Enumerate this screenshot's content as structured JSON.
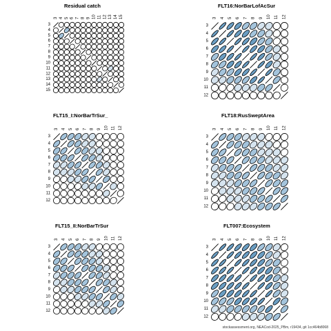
{
  "footer": "stockassessment.org, NEACod-2025_PBm, r19434, git 1cc464b8068",
  "colors": {
    "stroke": "#000000",
    "fill_light": "#d6e4ef",
    "fill_mid": "#a4c4dc",
    "fill_dark": "#6b9ec3"
  },
  "chart_data": [
    {
      "type": "correlation-ellipse-matrix",
      "title": "Residual catch",
      "ages": [
        3,
        4,
        5,
        6,
        7,
        8,
        9,
        10,
        11,
        12,
        13,
        14,
        15
      ],
      "correlation": [
        [
          1.0,
          0.05,
          0.06,
          0.04,
          0.03,
          0.02,
          0.02,
          0.01,
          0.01,
          0.01,
          0.0,
          0.0,
          0.0
        ],
        [
          0.05,
          1.0,
          0.4,
          0.1,
          0.05,
          0.03,
          0.02,
          0.01,
          0.01,
          0.0,
          0.0,
          0.0,
          0.0
        ],
        [
          0.06,
          0.4,
          1.0,
          0.05,
          0.04,
          0.03,
          0.02,
          0.01,
          0.01,
          0.0,
          0.0,
          0.0,
          0.0
        ],
        [
          0.04,
          0.1,
          0.05,
          1.0,
          0.05,
          0.03,
          0.02,
          0.01,
          0.01,
          0.0,
          0.0,
          0.0,
          0.0
        ],
        [
          0.03,
          0.05,
          0.04,
          0.05,
          1.0,
          0.05,
          0.02,
          0.01,
          0.01,
          0.0,
          0.0,
          0.0,
          0.0
        ],
        [
          0.02,
          0.03,
          0.03,
          0.03,
          0.05,
          1.0,
          0.05,
          0.02,
          0.01,
          0.0,
          0.0,
          0.0,
          0.0
        ],
        [
          0.02,
          0.02,
          0.02,
          0.02,
          0.02,
          0.05,
          1.0,
          0.05,
          0.02,
          0.01,
          0.0,
          0.0,
          0.0
        ],
        [
          0.01,
          0.01,
          0.01,
          0.01,
          0.01,
          0.02,
          0.05,
          1.0,
          0.05,
          0.02,
          0.01,
          0.0,
          0.0
        ],
        [
          0.01,
          0.01,
          0.01,
          0.01,
          0.01,
          0.01,
          0.02,
          0.05,
          1.0,
          0.05,
          0.35,
          0.02,
          0.01
        ],
        [
          0.01,
          0.0,
          0.0,
          0.0,
          0.0,
          0.0,
          0.01,
          0.02,
          0.05,
          1.0,
          0.05,
          0.02,
          0.01
        ],
        [
          0.0,
          0.0,
          0.0,
          0.0,
          0.0,
          0.0,
          0.0,
          0.01,
          0.35,
          0.05,
          1.0,
          0.05,
          0.02
        ],
        [
          0.0,
          0.0,
          0.0,
          0.0,
          0.0,
          0.0,
          0.0,
          0.0,
          0.02,
          0.02,
          0.05,
          1.0,
          0.05
        ],
        [
          0.0,
          0.0,
          0.0,
          0.0,
          0.0,
          0.0,
          0.0,
          0.0,
          0.01,
          0.01,
          0.02,
          0.05,
          1.0
        ]
      ]
    },
    {
      "type": "correlation-ellipse-matrix",
      "title": "FLT16:NorBarLofAcSur",
      "ages": [
        3,
        4,
        5,
        6,
        7,
        8,
        9,
        10,
        11,
        12
      ],
      "correlation": [
        [
          1.0,
          0.85,
          0.75,
          0.65,
          0.55,
          0.45,
          0.35,
          0.2,
          0.05,
          0.0
        ],
        [
          0.85,
          1.0,
          0.85,
          0.75,
          0.65,
          0.55,
          0.45,
          0.3,
          0.1,
          0.0
        ],
        [
          0.75,
          0.85,
          1.0,
          0.85,
          0.75,
          0.65,
          0.55,
          0.4,
          0.15,
          0.0
        ],
        [
          0.65,
          0.75,
          0.85,
          1.0,
          0.85,
          0.75,
          0.65,
          0.5,
          0.2,
          0.0
        ],
        [
          0.55,
          0.65,
          0.75,
          0.85,
          1.0,
          0.85,
          0.75,
          0.6,
          0.25,
          0.0
        ],
        [
          0.45,
          0.55,
          0.65,
          0.75,
          0.85,
          1.0,
          0.85,
          0.7,
          0.3,
          0.0
        ],
        [
          0.35,
          0.45,
          0.55,
          0.65,
          0.75,
          0.85,
          1.0,
          0.85,
          0.4,
          0.0
        ],
        [
          0.2,
          0.3,
          0.4,
          0.5,
          0.6,
          0.7,
          0.85,
          1.0,
          0.55,
          0.0
        ],
        [
          0.05,
          0.1,
          0.15,
          0.2,
          0.25,
          0.3,
          0.4,
          0.55,
          1.0,
          0.1
        ],
        [
          0.0,
          0.0,
          0.0,
          0.0,
          0.0,
          0.0,
          0.0,
          0.0,
          0.1,
          1.0
        ]
      ]
    },
    {
      "type": "correlation-ellipse-matrix",
      "title": "FLT15_I:NorBarTrSur_",
      "ages": [
        3,
        4,
        5,
        6,
        7,
        8,
        9,
        10,
        11,
        12
      ],
      "correlation": [
        [
          1.0,
          0.55,
          0.45,
          0.4,
          0.3,
          0.2,
          0.15,
          0.05,
          0.0,
          0.0
        ],
        [
          0.55,
          1.0,
          0.55,
          0.45,
          0.35,
          0.25,
          0.15,
          0.05,
          0.0,
          0.0
        ],
        [
          0.45,
          0.55,
          1.0,
          0.55,
          0.45,
          0.35,
          0.2,
          0.1,
          0.0,
          0.0
        ],
        [
          0.4,
          0.45,
          0.55,
          1.0,
          0.55,
          0.45,
          0.3,
          0.15,
          0.0,
          0.0
        ],
        [
          0.3,
          0.35,
          0.45,
          0.55,
          1.0,
          0.55,
          0.45,
          0.2,
          0.0,
          0.0
        ],
        [
          0.2,
          0.25,
          0.35,
          0.45,
          0.55,
          1.0,
          0.55,
          0.3,
          0.05,
          0.0
        ],
        [
          0.15,
          0.15,
          0.2,
          0.3,
          0.45,
          0.55,
          1.0,
          0.45,
          0.1,
          0.0
        ],
        [
          0.05,
          0.05,
          0.1,
          0.15,
          0.2,
          0.3,
          0.45,
          1.0,
          0.2,
          0.0
        ],
        [
          0.0,
          0.0,
          0.0,
          0.0,
          0.0,
          0.05,
          0.1,
          0.2,
          1.0,
          0.1
        ],
        [
          0.0,
          0.0,
          0.0,
          0.0,
          0.0,
          0.0,
          0.0,
          0.0,
          0.1,
          1.0
        ]
      ]
    },
    {
      "type": "correlation-ellipse-matrix",
      "title": "FLT18:RusSweptArea",
      "ages": [
        3,
        4,
        5,
        6,
        7,
        8,
        9,
        10,
        11,
        12
      ],
      "correlation": [
        [
          1.0,
          0.6,
          0.5,
          0.45,
          0.35,
          0.3,
          0.2,
          0.15,
          0.1,
          0.05
        ],
        [
          0.6,
          1.0,
          0.6,
          0.5,
          0.45,
          0.35,
          0.3,
          0.2,
          0.15,
          0.1
        ],
        [
          0.5,
          0.6,
          1.0,
          0.6,
          0.5,
          0.45,
          0.35,
          0.3,
          0.2,
          0.15
        ],
        [
          0.45,
          0.5,
          0.6,
          1.0,
          0.6,
          0.5,
          0.45,
          0.35,
          0.3,
          0.2
        ],
        [
          0.35,
          0.45,
          0.5,
          0.6,
          1.0,
          0.6,
          0.5,
          0.45,
          0.35,
          0.3
        ],
        [
          0.3,
          0.35,
          0.45,
          0.5,
          0.6,
          1.0,
          0.6,
          0.5,
          0.45,
          0.35
        ],
        [
          0.2,
          0.3,
          0.35,
          0.45,
          0.5,
          0.6,
          1.0,
          0.6,
          0.5,
          0.45
        ],
        [
          0.15,
          0.2,
          0.3,
          0.35,
          0.45,
          0.5,
          0.6,
          1.0,
          0.6,
          0.5
        ],
        [
          0.1,
          0.15,
          0.2,
          0.3,
          0.35,
          0.45,
          0.5,
          0.6,
          1.0,
          0.6
        ],
        [
          0.05,
          0.1,
          0.15,
          0.2,
          0.3,
          0.35,
          0.45,
          0.5,
          0.6,
          1.0
        ]
      ]
    },
    {
      "type": "correlation-ellipse-matrix",
      "title": "FLT15_II:NorBarTrSur",
      "ages": [
        3,
        4,
        5,
        6,
        7,
        8,
        9,
        10,
        11,
        12
      ],
      "correlation": [
        [
          1.0,
          0.5,
          0.45,
          0.4,
          0.35,
          0.25,
          0.15,
          0.05,
          0.0,
          0.0
        ],
        [
          0.5,
          1.0,
          0.5,
          0.45,
          0.4,
          0.3,
          0.2,
          0.1,
          0.0,
          0.0
        ],
        [
          0.45,
          0.5,
          1.0,
          0.5,
          0.45,
          0.4,
          0.3,
          0.15,
          0.05,
          0.0
        ],
        [
          0.4,
          0.45,
          0.5,
          1.0,
          0.5,
          0.45,
          0.4,
          0.25,
          0.1,
          0.0
        ],
        [
          0.35,
          0.4,
          0.45,
          0.5,
          1.0,
          0.5,
          0.45,
          0.35,
          0.15,
          0.05
        ],
        [
          0.25,
          0.3,
          0.4,
          0.45,
          0.5,
          1.0,
          0.5,
          0.45,
          0.25,
          0.1
        ],
        [
          0.15,
          0.2,
          0.3,
          0.4,
          0.45,
          0.5,
          1.0,
          0.5,
          0.35,
          0.15
        ],
        [
          0.05,
          0.1,
          0.15,
          0.25,
          0.35,
          0.45,
          0.5,
          1.0,
          0.45,
          0.25
        ],
        [
          0.0,
          0.0,
          0.05,
          0.1,
          0.15,
          0.25,
          0.35,
          0.45,
          1.0,
          0.4
        ],
        [
          0.0,
          0.0,
          0.0,
          0.0,
          0.05,
          0.1,
          0.15,
          0.25,
          0.4,
          1.0
        ]
      ]
    },
    {
      "type": "correlation-ellipse-matrix",
      "title": "FLT007:Ecosystem",
      "ages": [
        3,
        4,
        5,
        6,
        7,
        8,
        9,
        10,
        11,
        12
      ],
      "correlation": [
        [
          1.0,
          0.85,
          0.8,
          0.75,
          0.7,
          0.65,
          0.6,
          0.5,
          0.3,
          0.1
        ],
        [
          0.85,
          1.0,
          0.85,
          0.8,
          0.75,
          0.7,
          0.65,
          0.55,
          0.35,
          0.1
        ],
        [
          0.8,
          0.85,
          1.0,
          0.85,
          0.8,
          0.75,
          0.7,
          0.6,
          0.4,
          0.15
        ],
        [
          0.75,
          0.8,
          0.85,
          1.0,
          0.85,
          0.8,
          0.75,
          0.65,
          0.45,
          0.15
        ],
        [
          0.7,
          0.75,
          0.8,
          0.85,
          1.0,
          0.85,
          0.8,
          0.7,
          0.5,
          0.2
        ],
        [
          0.65,
          0.7,
          0.75,
          0.8,
          0.85,
          1.0,
          0.85,
          0.75,
          0.55,
          0.25
        ],
        [
          0.6,
          0.65,
          0.7,
          0.75,
          0.8,
          0.85,
          1.0,
          0.85,
          0.6,
          0.3
        ],
        [
          0.5,
          0.55,
          0.6,
          0.65,
          0.7,
          0.75,
          0.85,
          1.0,
          0.7,
          0.4
        ],
        [
          0.3,
          0.35,
          0.4,
          0.45,
          0.5,
          0.55,
          0.6,
          0.7,
          1.0,
          0.55
        ],
        [
          0.1,
          0.1,
          0.15,
          0.15,
          0.2,
          0.25,
          0.3,
          0.4,
          0.55,
          1.0
        ]
      ]
    }
  ]
}
